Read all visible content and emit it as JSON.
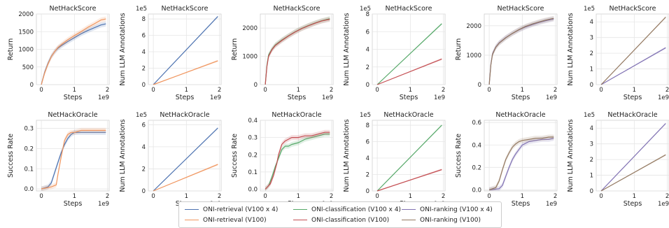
{
  "colors": {
    "retrieval_x4": "#4C72B0",
    "retrieval": "#F0955E",
    "classification_x4": "#55A868",
    "classification": "#C44E52",
    "ranking_x4": "#8172B3",
    "ranking": "#937860"
  },
  "legend": {
    "retrieval_x4": "ONI-retrieval (V100 x 4)",
    "retrieval": "ONI-retrieval (V100)",
    "classification_x4": "ONI-classification (V100 x 4)",
    "classification": "ONI-classification (V100)",
    "ranking_x4": "ONI-ranking (V100 x 4)",
    "ranking": "ONI-ranking (V100)"
  },
  "chart_data": [
    {
      "type": "line",
      "title": "NetHackScore",
      "xlabel": "Steps",
      "ylabel": "Return",
      "x_offset": "1e9",
      "y_offset": "",
      "xlim": [
        -0.15,
        2.05
      ],
      "ylim": [
        0,
        2000
      ],
      "xticks": [
        0,
        1,
        2
      ],
      "yticks": [
        0,
        500,
        1000,
        1500,
        2000
      ],
      "series": [
        {
          "key": "retrieval_x4",
          "x": [
            0,
            0.1,
            0.2,
            0.3,
            0.4,
            0.5,
            0.6,
            0.8,
            1.0,
            1.2,
            1.4,
            1.6,
            1.8,
            1.95
          ],
          "y": [
            0,
            350,
            600,
            800,
            930,
            1030,
            1100,
            1220,
            1330,
            1440,
            1530,
            1610,
            1690,
            1720
          ]
        },
        {
          "key": "retrieval",
          "x": [
            0,
            0.1,
            0.2,
            0.3,
            0.4,
            0.5,
            0.6,
            0.8,
            1.0,
            1.2,
            1.4,
            1.6,
            1.8,
            1.95
          ],
          "y": [
            0,
            330,
            580,
            790,
            930,
            1050,
            1130,
            1270,
            1390,
            1500,
            1620,
            1720,
            1830,
            1860
          ]
        }
      ]
    },
    {
      "type": "line",
      "title": "NetHackScore",
      "xlabel": "Steps",
      "ylabel": "Num LLM Annotations",
      "x_offset": "1e9",
      "y_offset": "1e5",
      "xlim": [
        -0.15,
        2.05
      ],
      "ylim": [
        0,
        8.6
      ],
      "xticks": [
        0,
        1,
        2
      ],
      "yticks": [
        0,
        2,
        4,
        6,
        8
      ],
      "series": [
        {
          "key": "retrieval_x4",
          "x": [
            0,
            1.95
          ],
          "y": [
            0,
            8.3
          ]
        },
        {
          "key": "retrieval",
          "x": [
            0,
            1.95
          ],
          "y": [
            0,
            2.9
          ]
        }
      ]
    },
    {
      "type": "line",
      "title": "NetHackScore",
      "xlabel": "Steps",
      "ylabel": "Return",
      "x_offset": "1e9",
      "y_offset": "",
      "xlim": [
        -0.15,
        2.05
      ],
      "ylim": [
        0,
        2500
      ],
      "xticks": [
        0,
        1,
        2
      ],
      "yticks": [
        0,
        1000,
        2000
      ],
      "series": [
        {
          "key": "classification_x4",
          "x": [
            0,
            0.05,
            0.1,
            0.2,
            0.3,
            0.5,
            0.7,
            0.9,
            1.1,
            1.3,
            1.5,
            1.7,
            1.9,
            1.95
          ],
          "y": [
            0,
            700,
            1050,
            1250,
            1400,
            1580,
            1730,
            1870,
            1990,
            2090,
            2180,
            2260,
            2320,
            2330
          ]
        },
        {
          "key": "classification",
          "x": [
            0,
            0.05,
            0.1,
            0.2,
            0.3,
            0.5,
            0.7,
            0.9,
            1.1,
            1.3,
            1.5,
            1.7,
            1.9,
            1.95
          ],
          "y": [
            0,
            650,
            1000,
            1230,
            1380,
            1560,
            1720,
            1860,
            1980,
            2080,
            2170,
            2250,
            2300,
            2310
          ]
        }
      ]
    },
    {
      "type": "line",
      "title": "NetHackScore",
      "xlabel": "Steps",
      "ylabel": "Num LLM Annotations",
      "x_offset": "1e9",
      "y_offset": "1e5",
      "xlim": [
        -0.15,
        2.05
      ],
      "ylim": [
        0,
        8
      ],
      "xticks": [
        0,
        1,
        2
      ],
      "yticks": [
        0,
        2,
        4,
        6,
        8
      ],
      "series": [
        {
          "key": "classification_x4",
          "x": [
            0,
            1.95
          ],
          "y": [
            0,
            6.9
          ]
        },
        {
          "key": "classification",
          "x": [
            0,
            1.95
          ],
          "y": [
            0,
            2.9
          ]
        }
      ]
    },
    {
      "type": "line",
      "title": "NetHackScore",
      "xlabel": "Steps",
      "ylabel": "Return",
      "x_offset": "1e9",
      "y_offset": "",
      "xlim": [
        -0.15,
        2.05
      ],
      "ylim": [
        0,
        2400
      ],
      "xticks": [
        0,
        1,
        2
      ],
      "yticks": [
        0,
        1000,
        2000
      ],
      "series": [
        {
          "key": "ranking_x4",
          "x": [
            0,
            0.05,
            0.1,
            0.2,
            0.3,
            0.5,
            0.7,
            0.9,
            1.1,
            1.3,
            1.5,
            1.7,
            1.9,
            1.95
          ],
          "y": [
            0,
            700,
            1050,
            1280,
            1420,
            1600,
            1740,
            1860,
            1960,
            2040,
            2110,
            2170,
            2220,
            2230
          ]
        },
        {
          "key": "ranking",
          "x": [
            0,
            0.05,
            0.1,
            0.2,
            0.3,
            0.5,
            0.7,
            0.9,
            1.1,
            1.3,
            1.5,
            1.7,
            1.9,
            1.95
          ],
          "y": [
            0,
            680,
            1030,
            1270,
            1410,
            1590,
            1740,
            1870,
            1980,
            2060,
            2130,
            2190,
            2240,
            2250
          ]
        }
      ]
    },
    {
      "type": "line",
      "title": "NetHackScore",
      "xlabel": "Steps",
      "ylabel": "Num LLM Annotations",
      "x_offset": "1e9",
      "y_offset": "1e5",
      "xlim": [
        -0.15,
        2.05
      ],
      "ylim": [
        0,
        4.5
      ],
      "xticks": [
        0,
        1,
        2
      ],
      "yticks": [
        0,
        1,
        2,
        3,
        4
      ],
      "series": [
        {
          "key": "ranking_x4",
          "x": [
            0,
            1.95
          ],
          "y": [
            0,
            2.35
          ]
        },
        {
          "key": "ranking",
          "x": [
            0,
            1.95
          ],
          "y": [
            0,
            4.3
          ]
        }
      ]
    },
    {
      "type": "line",
      "title": "NetHackOracle",
      "xlabel": "Steps",
      "ylabel": "Success Rate",
      "x_offset": "1e9",
      "y_offset": "",
      "xlim": [
        -0.15,
        2.05
      ],
      "ylim": [
        -0.01,
        0.34
      ],
      "xticks": [
        0,
        1,
        2
      ],
      "yticks": [
        0.0,
        0.1,
        0.2,
        0.3
      ],
      "series": [
        {
          "key": "retrieval_x4",
          "x": [
            0,
            0.2,
            0.3,
            0.4,
            0.5,
            0.6,
            0.7,
            0.8,
            0.9,
            1.0,
            1.2,
            1.4,
            1.6,
            1.8,
            1.95
          ],
          "y": [
            0,
            0.01,
            0.03,
            0.08,
            0.13,
            0.18,
            0.22,
            0.25,
            0.27,
            0.28,
            0.28,
            0.28,
            0.28,
            0.28,
            0.28
          ]
        },
        {
          "key": "retrieval",
          "x": [
            0,
            0.3,
            0.45,
            0.5,
            0.6,
            0.7,
            0.8,
            0.9,
            1.0,
            1.2,
            1.4,
            1.6,
            1.8,
            1.95
          ],
          "y": [
            0,
            0.01,
            0.02,
            0.07,
            0.16,
            0.24,
            0.27,
            0.28,
            0.28,
            0.29,
            0.29,
            0.29,
            0.29,
            0.29
          ]
        }
      ]
    },
    {
      "type": "line",
      "title": "NetHackOracle",
      "xlabel": "Steps",
      "ylabel": "Num LLM Annotations",
      "x_offset": "1e9",
      "y_offset": "1e5",
      "xlim": [
        -0.15,
        2.05
      ],
      "ylim": [
        0,
        6.4
      ],
      "xticks": [
        0,
        1,
        2
      ],
      "yticks": [
        0,
        2,
        4,
        6
      ],
      "series": [
        {
          "key": "retrieval_x4",
          "x": [
            0,
            1.95
          ],
          "y": [
            0,
            5.7
          ]
        },
        {
          "key": "retrieval",
          "x": [
            0,
            1.95
          ],
          "y": [
            0,
            2.4
          ]
        }
      ]
    },
    {
      "type": "line",
      "title": "NetHackOracle",
      "xlabel": "Steps",
      "ylabel": "Success Rate",
      "x_offset": "1e9",
      "y_offset": "",
      "xlim": [
        -0.15,
        2.05
      ],
      "ylim": [
        -0.01,
        0.4
      ],
      "xticks": [
        0,
        1,
        2
      ],
      "yticks": [
        0.0,
        0.1,
        0.2,
        0.3,
        0.4
      ],
      "series": [
        {
          "key": "classification_x4",
          "x": [
            0,
            0.1,
            0.2,
            0.3,
            0.4,
            0.5,
            0.6,
            0.7,
            0.8,
            1.0,
            1.2,
            1.4,
            1.6,
            1.8,
            1.95
          ],
          "y": [
            0,
            0.02,
            0.07,
            0.13,
            0.18,
            0.23,
            0.25,
            0.25,
            0.26,
            0.27,
            0.29,
            0.3,
            0.31,
            0.32,
            0.32
          ]
        },
        {
          "key": "classification",
          "x": [
            0,
            0.15,
            0.25,
            0.35,
            0.4,
            0.5,
            0.6,
            0.7,
            0.8,
            1.0,
            1.2,
            1.4,
            1.6,
            1.8,
            1.95
          ],
          "y": [
            0,
            0.03,
            0.08,
            0.15,
            0.2,
            0.26,
            0.28,
            0.29,
            0.3,
            0.3,
            0.31,
            0.31,
            0.32,
            0.33,
            0.33
          ]
        }
      ]
    },
    {
      "type": "line",
      "title": "NetHackOracle",
      "xlabel": "Steps",
      "ylabel": "Num LLM Annotations",
      "x_offset": "1e9",
      "y_offset": "1e5",
      "xlim": [
        -0.15,
        2.05
      ],
      "ylim": [
        0,
        8.6
      ],
      "xticks": [
        0,
        1,
        2
      ],
      "yticks": [
        0,
        2,
        4,
        6,
        8
      ],
      "series": [
        {
          "key": "classification_x4",
          "x": [
            0,
            1.95
          ],
          "y": [
            0,
            8.0
          ]
        },
        {
          "key": "classification",
          "x": [
            0,
            1.95
          ],
          "y": [
            0,
            2.6
          ]
        }
      ]
    },
    {
      "type": "line",
      "title": "NetHackOracle",
      "xlabel": "Steps",
      "ylabel": "Success Rate",
      "x_offset": "1e9",
      "y_offset": "",
      "xlim": [
        -0.15,
        2.05
      ],
      "ylim": [
        -0.01,
        0.62
      ],
      "xticks": [
        0,
        1,
        2
      ],
      "yticks": [
        0.0,
        0.2,
        0.4,
        0.6
      ],
      "series": [
        {
          "key": "ranking_x4",
          "x": [
            0,
            0.3,
            0.4,
            0.5,
            0.6,
            0.7,
            0.8,
            0.9,
            1.0,
            1.2,
            1.4,
            1.6,
            1.8,
            1.95
          ],
          "y": [
            0,
            0.01,
            0.04,
            0.12,
            0.2,
            0.27,
            0.32,
            0.36,
            0.4,
            0.43,
            0.44,
            0.45,
            0.45,
            0.46
          ]
        },
        {
          "key": "ranking",
          "x": [
            0,
            0.2,
            0.3,
            0.4,
            0.5,
            0.6,
            0.7,
            0.8,
            0.9,
            1.0,
            1.2,
            1.4,
            1.6,
            1.8,
            1.95
          ],
          "y": [
            0,
            0.02,
            0.08,
            0.18,
            0.27,
            0.33,
            0.38,
            0.41,
            0.43,
            0.44,
            0.45,
            0.46,
            0.46,
            0.47,
            0.47
          ]
        }
      ]
    },
    {
      "type": "line",
      "title": "NetHackOracle",
      "xlabel": "Steps",
      "ylabel": "Num LLM Annotations",
      "x_offset": "1e9",
      "y_offset": "1e5",
      "xlim": [
        -0.15,
        2.05
      ],
      "ylim": [
        0,
        4.5
      ],
      "xticks": [
        0,
        1,
        2
      ],
      "yticks": [
        0,
        1,
        2,
        3,
        4
      ],
      "series": [
        {
          "key": "ranking_x4",
          "x": [
            0,
            1.95
          ],
          "y": [
            0,
            4.3
          ]
        },
        {
          "key": "ranking",
          "x": [
            0,
            1.95
          ],
          "y": [
            0,
            2.3
          ]
        }
      ]
    }
  ]
}
